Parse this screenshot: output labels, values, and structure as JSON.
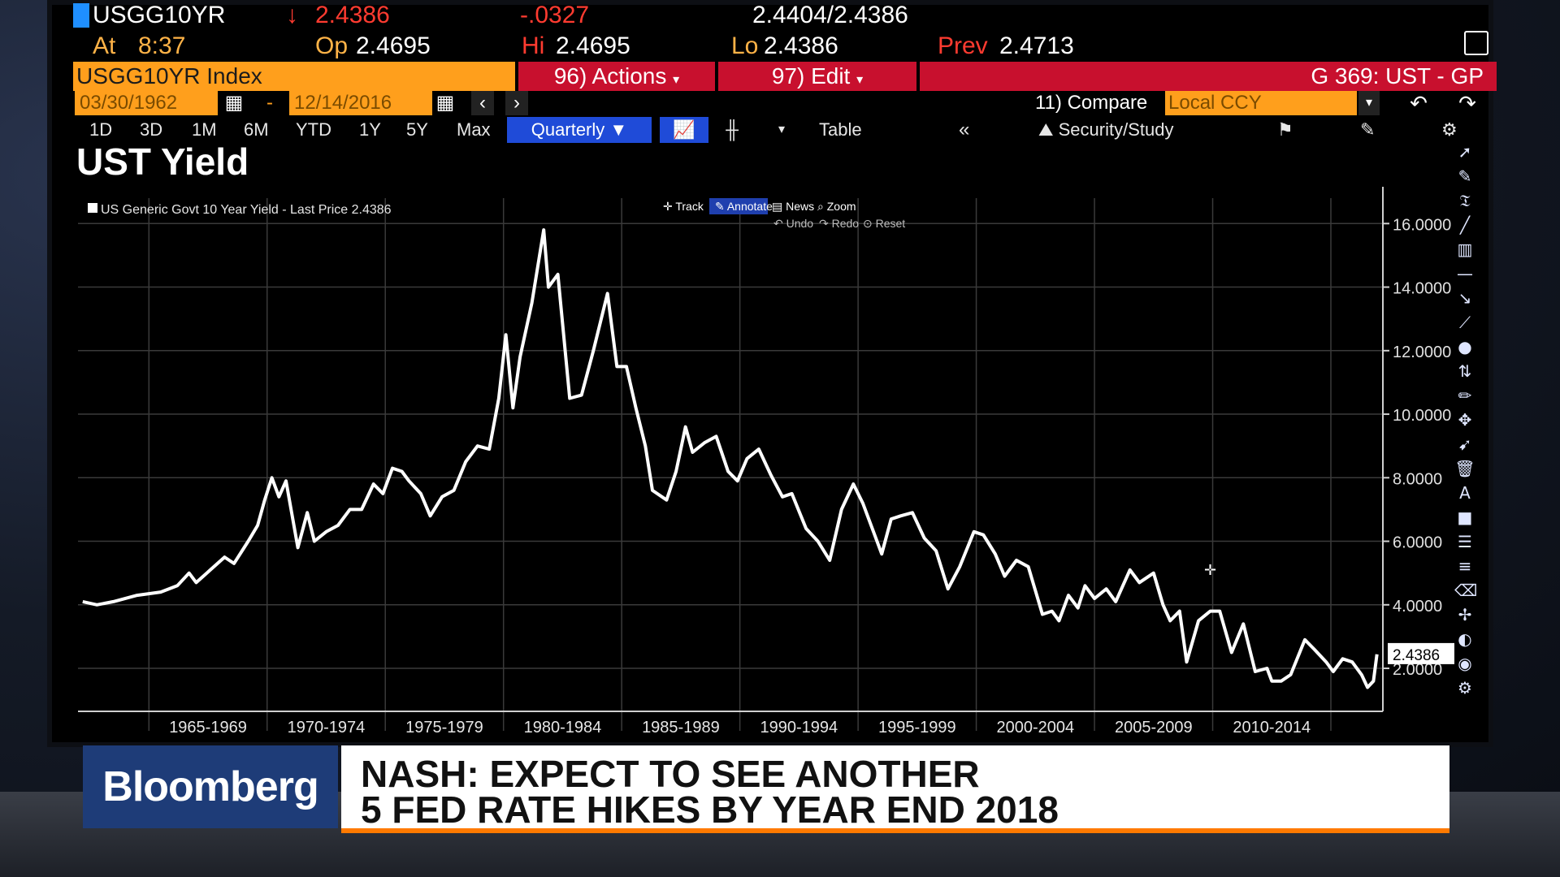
{
  "header": {
    "ticker": "USGG10YR",
    "arrow": "↓",
    "last": "2.4386",
    "change": "-.0327",
    "bid_ask": "2.4404/2.4386",
    "time_label": "At",
    "time": "8:37",
    "open_label": "Op",
    "open": "2.4695",
    "high_label": "Hi",
    "high": "2.4695",
    "low_label": "Lo",
    "low": "2.4386",
    "prev_label": "Prev",
    "prev": "2.4713"
  },
  "commandbar": {
    "security": "USGG10YR Index",
    "actions": "96) Actions",
    "edit": "97) Edit",
    "function": "G 369: UST - GP"
  },
  "daterow": {
    "start": "03/30/1962",
    "dash": "-",
    "end": "12/14/2016",
    "compare": "11) Compare",
    "currency": "Local CCY"
  },
  "ranges": [
    "1D",
    "3D",
    "1M",
    "6M",
    "YTD",
    "1Y",
    "5Y",
    "Max"
  ],
  "period": "Quarterly",
  "table_label": "Table",
  "study_label": "Security/Study",
  "chart_title": "UST Yield",
  "chart_tools": {
    "track": "Track",
    "annotate": "Annotate",
    "news": "News",
    "zoom": "Zoom",
    "undo": "Undo",
    "redo": "Redo",
    "reset": "Reset"
  },
  "chart_data": {
    "type": "line",
    "legend": "US Generic Govt 10 Year Yield - Last Price 2.4386",
    "series": [
      {
        "name": "US Generic Govt 10 Year Yield",
        "color": "#ffffff",
        "points": [
          [
            1962.2,
            4.1
          ],
          [
            1962.8,
            4.0
          ],
          [
            1963.5,
            4.1
          ],
          [
            1964.5,
            4.3
          ],
          [
            1965.5,
            4.4
          ],
          [
            1966.2,
            4.6
          ],
          [
            1966.7,
            5.0
          ],
          [
            1967.0,
            4.7
          ],
          [
            1967.6,
            5.1
          ],
          [
            1968.2,
            5.5
          ],
          [
            1968.6,
            5.3
          ],
          [
            1969.2,
            6.0
          ],
          [
            1969.6,
            6.5
          ],
          [
            1969.9,
            7.3
          ],
          [
            1970.2,
            8.0
          ],
          [
            1970.5,
            7.4
          ],
          [
            1970.8,
            7.9
          ],
          [
            1971.3,
            5.8
          ],
          [
            1971.7,
            6.9
          ],
          [
            1972.0,
            6.0
          ],
          [
            1972.5,
            6.3
          ],
          [
            1973.0,
            6.5
          ],
          [
            1973.5,
            7.0
          ],
          [
            1974.0,
            7.0
          ],
          [
            1974.5,
            7.8
          ],
          [
            1974.9,
            7.5
          ],
          [
            1975.3,
            8.3
          ],
          [
            1975.7,
            8.2
          ],
          [
            1976.0,
            7.9
          ],
          [
            1976.5,
            7.5
          ],
          [
            1976.9,
            6.8
          ],
          [
            1977.4,
            7.4
          ],
          [
            1977.9,
            7.6
          ],
          [
            1978.4,
            8.5
          ],
          [
            1978.9,
            9.0
          ],
          [
            1979.4,
            8.9
          ],
          [
            1979.8,
            10.5
          ],
          [
            1980.1,
            12.5
          ],
          [
            1980.4,
            10.2
          ],
          [
            1980.7,
            11.8
          ],
          [
            1981.2,
            13.5
          ],
          [
            1981.7,
            15.8
          ],
          [
            1981.9,
            14.0
          ],
          [
            1982.3,
            14.4
          ],
          [
            1982.8,
            10.5
          ],
          [
            1983.3,
            10.6
          ],
          [
            1983.8,
            12.0
          ],
          [
            1984.4,
            13.8
          ],
          [
            1984.8,
            11.5
          ],
          [
            1985.2,
            11.5
          ],
          [
            1985.6,
            10.2
          ],
          [
            1986.0,
            9.0
          ],
          [
            1986.3,
            7.6
          ],
          [
            1986.9,
            7.3
          ],
          [
            1987.3,
            8.2
          ],
          [
            1987.7,
            9.6
          ],
          [
            1988.0,
            8.8
          ],
          [
            1988.5,
            9.1
          ],
          [
            1989.0,
            9.3
          ],
          [
            1989.5,
            8.2
          ],
          [
            1989.9,
            7.9
          ],
          [
            1990.3,
            8.6
          ],
          [
            1990.8,
            8.9
          ],
          [
            1991.3,
            8.1
          ],
          [
            1991.8,
            7.4
          ],
          [
            1992.2,
            7.5
          ],
          [
            1992.8,
            6.4
          ],
          [
            1993.3,
            6.0
          ],
          [
            1993.8,
            5.4
          ],
          [
            1994.3,
            7.0
          ],
          [
            1994.8,
            7.8
          ],
          [
            1995.2,
            7.2
          ],
          [
            1995.7,
            6.2
          ],
          [
            1996.0,
            5.6
          ],
          [
            1996.4,
            6.7
          ],
          [
            1996.8,
            6.8
          ],
          [
            1997.3,
            6.9
          ],
          [
            1997.8,
            6.1
          ],
          [
            1998.3,
            5.7
          ],
          [
            1998.8,
            4.5
          ],
          [
            1999.3,
            5.2
          ],
          [
            1999.9,
            6.3
          ],
          [
            2000.3,
            6.2
          ],
          [
            2000.8,
            5.6
          ],
          [
            2001.2,
            4.9
          ],
          [
            2001.7,
            5.4
          ],
          [
            2002.2,
            5.2
          ],
          [
            2002.8,
            3.7
          ],
          [
            2003.2,
            3.8
          ],
          [
            2003.5,
            3.5
          ],
          [
            2003.9,
            4.3
          ],
          [
            2004.3,
            3.9
          ],
          [
            2004.6,
            4.6
          ],
          [
            2005.0,
            4.2
          ],
          [
            2005.5,
            4.5
          ],
          [
            2005.9,
            4.1
          ],
          [
            2006.5,
            5.1
          ],
          [
            2006.9,
            4.7
          ],
          [
            2007.5,
            5.0
          ],
          [
            2007.9,
            4.0
          ],
          [
            2008.2,
            3.5
          ],
          [
            2008.6,
            3.8
          ],
          [
            2008.9,
            2.2
          ],
          [
            2009.4,
            3.5
          ],
          [
            2009.9,
            3.8
          ],
          [
            2010.3,
            3.8
          ],
          [
            2010.8,
            2.5
          ],
          [
            2011.3,
            3.4
          ],
          [
            2011.8,
            1.9
          ],
          [
            2012.3,
            2.0
          ],
          [
            2012.5,
            1.6
          ],
          [
            2012.9,
            1.6
          ],
          [
            2013.3,
            1.8
          ],
          [
            2013.9,
            2.9
          ],
          [
            2014.3,
            2.6
          ],
          [
            2014.8,
            2.2
          ],
          [
            2015.1,
            1.9
          ],
          [
            2015.5,
            2.3
          ],
          [
            2015.9,
            2.2
          ],
          [
            2016.3,
            1.8
          ],
          [
            2016.55,
            1.4
          ],
          [
            2016.8,
            1.6
          ],
          [
            2016.95,
            2.44
          ]
        ]
      }
    ],
    "xlim": [
      1962.0,
      2017.2
    ],
    "ylim": [
      0.8,
      16.8
    ],
    "y_ticks": [
      2,
      4,
      6,
      8,
      10,
      12,
      14,
      16
    ],
    "y_tick_labels": [
      "2.0000",
      "4.0000",
      "6.0000",
      "8.0000",
      "10.0000",
      "12.0000",
      "14.0000",
      "16.0000"
    ],
    "x_ticks": [
      {
        "label": "1965-1969",
        "center": 1967.5
      },
      {
        "label": "1970-1974",
        "center": 1972.5
      },
      {
        "label": "1975-1979",
        "center": 1977.5
      },
      {
        "label": "1980-1984",
        "center": 1982.5
      },
      {
        "label": "1985-1989",
        "center": 1987.5
      },
      {
        "label": "1990-1994",
        "center": 1992.5
      },
      {
        "label": "1995-1999",
        "center": 1997.5
      },
      {
        "label": "2000-2004",
        "center": 2002.5
      },
      {
        "label": "2005-2009",
        "center": 2007.5
      },
      {
        "label": "2010-2014",
        "center": 2012.5
      }
    ],
    "x_grid": [
      1965,
      1970,
      1975,
      1980,
      1985,
      1990,
      1995,
      2000,
      2005,
      2010,
      2015
    ],
    "last_price_label": "2.4386",
    "last_price": 2.4386,
    "grid": true,
    "y_axis_side": "right",
    "background": "#000000",
    "gridline_color": "#3a3a3a"
  },
  "lower_third": {
    "brand": "Bloomberg",
    "headline_line1": "NASH: EXPECT TO SEE ANOTHER",
    "headline_line2": "5 FED RATE HIKES BY YEAR END 2018",
    "accent": "#ff7a00"
  },
  "colors": {
    "amber": "#ffb347",
    "red_bar": "#c8102e",
    "orange_bar": "#ff9f1c",
    "blue_button": "#1f4bd8"
  },
  "icons": {
    "calendar": "calendar-icon",
    "back": "chevron-left-icon",
    "forward": "chevron-right-icon",
    "undo": "undo-icon",
    "redo": "redo-icon",
    "collapse": "double-chevron-left-icon",
    "flag": "flag-icon",
    "settings": "gear-icon"
  }
}
